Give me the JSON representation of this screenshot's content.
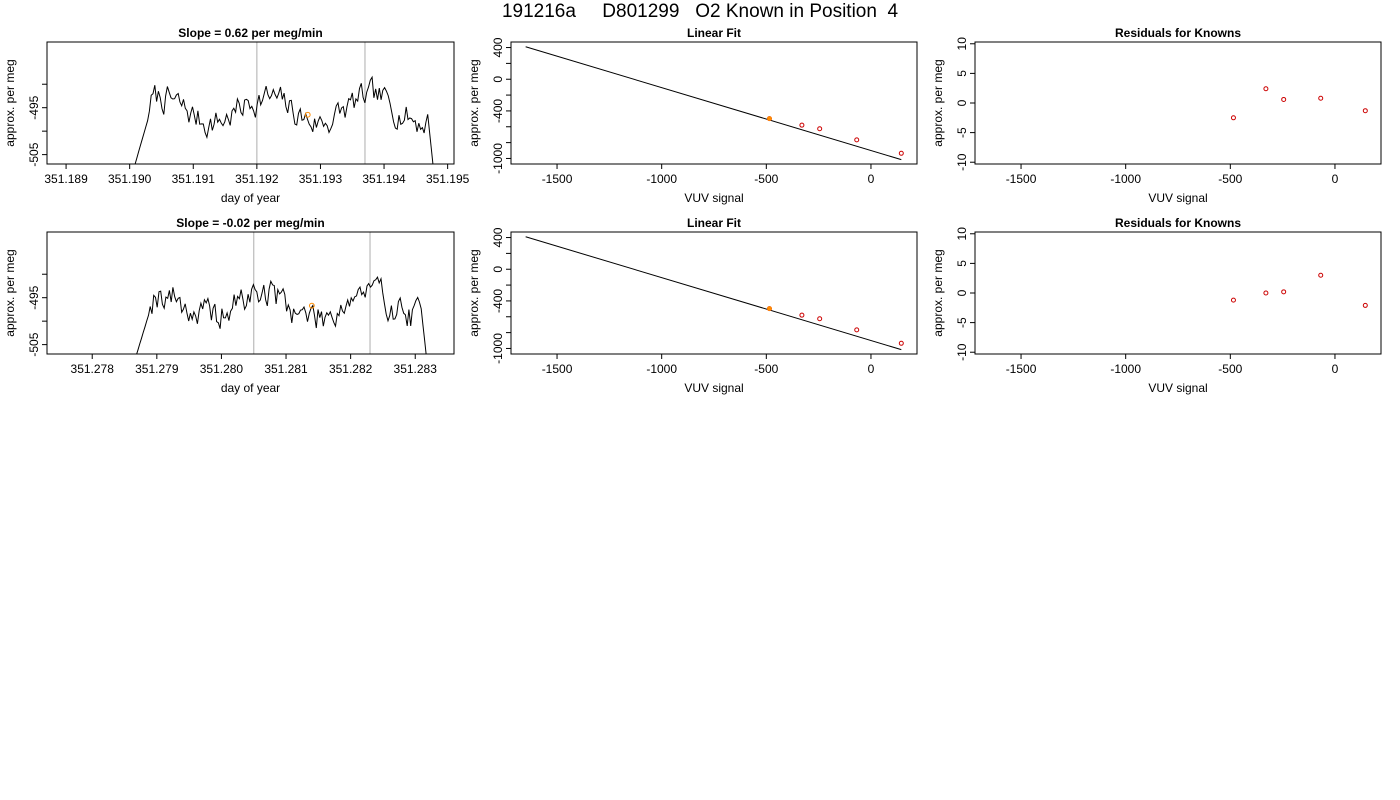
{
  "page_title": "191216a     D801299   O2 Known in Position  4",
  "chart_data": [
    {
      "type": "line",
      "title": "Slope =  0.62  per meg/min",
      "xlabel": "day of year",
      "ylabel": "approx. per meg",
      "xlim": [
        351.1887,
        351.1951
      ],
      "ylim": [
        -507,
        -481
      ],
      "xticks": [
        351.189,
        351.19,
        351.191,
        351.192,
        351.193,
        351.194,
        351.195
      ],
      "xtick_labels": [
        "351.189",
        "351.190",
        "351.191",
        "351.192",
        "351.193",
        "351.194",
        "351.195"
      ],
      "yticks": [
        -505,
        -500,
        -495,
        -490
      ],
      "ytick_labels": [
        "-505",
        "",
        "-495",
        ""
      ],
      "vlines": [
        351.192,
        351.1937
      ],
      "orange_point": {
        "x": 351.1928,
        "y": -496.5
      },
      "x_start": 351.19,
      "x_end": 351.1948,
      "level": -495.5,
      "noise": 1.6,
      "seed": 7,
      "line_color": "#000000",
      "vline_color": "#bbbbbb",
      "highlight_color": "#ff8c00",
      "grid": false
    },
    {
      "type": "scatter",
      "title": "Linear Fit",
      "xlabel": "VUV signal",
      "ylabel": "approx. per meg",
      "xlim": [
        -1720,
        220
      ],
      "ylim": [
        -1070,
        470
      ],
      "xticks": [
        -1500,
        -1000,
        -500,
        0
      ],
      "xtick_labels": [
        "-1500",
        "-1000",
        "-500",
        "0"
      ],
      "yticks": [
        400,
        200,
        0,
        -200,
        -400,
        -600,
        -800,
        -1000
      ],
      "ytick_labels": [
        "400",
        "",
        "0",
        "",
        "-400",
        "",
        "",
        "-1000"
      ],
      "fit_line": {
        "x": [
          -1650,
          145
        ],
        "y": [
          410,
          -1015
        ]
      },
      "points": {
        "x": [
          -485,
          -330,
          -245,
          -68,
          145
        ],
        "y": [
          -497,
          -580,
          -625,
          -765,
          -935
        ]
      },
      "orange_point": {
        "x": -485,
        "y": -497
      },
      "point_color": "#cc0000",
      "highlight_color": "#ff8c00",
      "grid": false
    },
    {
      "type": "scatter",
      "title": "Residuals for Knowns",
      "xlabel": "VUV signal",
      "ylabel": "approx. per meg",
      "xlim": [
        -1720,
        220
      ],
      "ylim": [
        -10.3,
        10.3
      ],
      "xticks": [
        -1500,
        -1000,
        -500,
        0
      ],
      "xtick_labels": [
        "-1500",
        "-1000",
        "-500",
        "0"
      ],
      "yticks": [
        10,
        5,
        0,
        -5,
        -10
      ],
      "ytick_labels": [
        "10",
        "5",
        "0",
        "-5",
        "-10"
      ],
      "points": {
        "x": [
          -485,
          -330,
          -245,
          -68,
          145
        ],
        "y": [
          -2.5,
          2.4,
          0.6,
          0.8,
          -1.3
        ]
      },
      "point_color": "#cc0000",
      "grid": false
    },
    {
      "type": "line",
      "title": "Slope =  -0.02  per meg/min",
      "xlabel": "day of year",
      "ylabel": "approx. per meg",
      "xlim": [
        351.2773,
        351.2836
      ],
      "ylim": [
        -507,
        -481
      ],
      "xticks": [
        351.278,
        351.279,
        351.28,
        351.281,
        351.282,
        351.283
      ],
      "xtick_labels": [
        "351.278",
        "351.279",
        "351.280",
        "351.281",
        "351.282",
        "351.283"
      ],
      "yticks": [
        -505,
        -500,
        -495,
        -490
      ],
      "ytick_labels": [
        "-505",
        "",
        "-495",
        ""
      ],
      "vlines": [
        351.2805,
        351.2823
      ],
      "orange_point": {
        "x": 351.2814,
        "y": -496.7
      },
      "x_start": 351.2786,
      "x_end": 351.2832,
      "level": -496.5,
      "noise": 1.8,
      "seed": 19,
      "line_color": "#000000",
      "vline_color": "#bbbbbb",
      "highlight_color": "#ff8c00",
      "grid": false
    },
    {
      "type": "scatter",
      "title": "Linear Fit",
      "xlabel": "VUV signal",
      "ylabel": "approx. per meg",
      "xlim": [
        -1720,
        220
      ],
      "ylim": [
        -1070,
        470
      ],
      "xticks": [
        -1500,
        -1000,
        -500,
        0
      ],
      "xtick_labels": [
        "-1500",
        "-1000",
        "-500",
        "0"
      ],
      "yticks": [
        400,
        200,
        0,
        -200,
        -400,
        -600,
        -800,
        -1000
      ],
      "ytick_labels": [
        "400",
        "",
        "0",
        "",
        "-400",
        "",
        "",
        "-1000"
      ],
      "fit_line": {
        "x": [
          -1650,
          145
        ],
        "y": [
          410,
          -1015
        ]
      },
      "points": {
        "x": [
          -485,
          -330,
          -245,
          -68,
          145
        ],
        "y": [
          -497,
          -580,
          -625,
          -765,
          -935
        ]
      },
      "orange_point": {
        "x": -485,
        "y": -497
      },
      "point_color": "#cc0000",
      "highlight_color": "#ff8c00",
      "grid": false
    },
    {
      "type": "scatter",
      "title": "Residuals for Knowns",
      "xlabel": "VUV signal",
      "ylabel": "approx. per meg",
      "xlim": [
        -1720,
        220
      ],
      "ylim": [
        -10.3,
        10.3
      ],
      "xticks": [
        -1500,
        -1000,
        -500,
        0
      ],
      "xtick_labels": [
        "-1500",
        "-1000",
        "-500",
        "0"
      ],
      "yticks": [
        10,
        5,
        0,
        -5,
        -10
      ],
      "ytick_labels": [
        "10",
        "5",
        "0",
        "-5",
        "-10"
      ],
      "points": {
        "x": [
          -485,
          -330,
          -245,
          -68,
          145
        ],
        "y": [
          -1.2,
          0.0,
          0.2,
          3.0,
          -2.1
        ]
      },
      "point_color": "#cc0000",
      "grid": false
    }
  ]
}
